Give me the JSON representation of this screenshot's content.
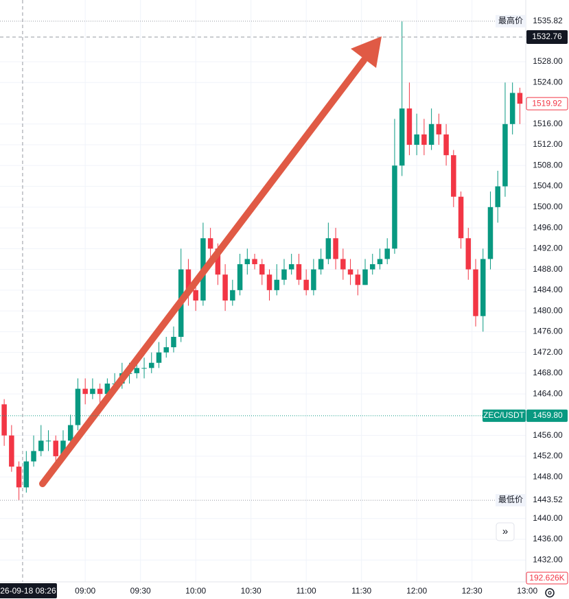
{
  "chart_data": {
    "type": "candlestick",
    "categories": [
      null,
      null,
      null,
      null,
      null,
      null,
      null,
      null,
      null,
      null,
      null,
      null,
      null,
      null,
      null,
      null,
      null,
      null,
      null,
      null,
      null,
      null,
      null,
      null,
      null,
      null,
      null,
      null,
      null,
      null,
      null,
      null,
      null,
      null,
      null,
      null,
      null,
      null,
      null,
      null,
      null,
      null,
      null,
      null,
      null,
      null,
      null,
      null,
      null,
      null,
      null,
      null,
      null,
      null,
      null,
      null,
      null,
      null,
      null,
      null,
      null,
      null,
      null,
      null,
      null,
      null,
      null,
      null,
      null,
      null,
      null
    ],
    "open": [
      1462,
      1456,
      1450,
      1446,
      1451,
      1453,
      1455,
      1455,
      1452,
      1455,
      1458,
      1465,
      1464,
      1465,
      1464,
      1466,
      1466,
      1468,
      1468,
      1469,
      1469,
      1470,
      1472,
      1473,
      1475,
      1488,
      1484,
      1482,
      1494,
      1492,
      1487,
      1482,
      1484,
      1489,
      1490,
      1489,
      1487,
      1484,
      1486,
      1488,
      1489,
      1486,
      1484,
      1488,
      1490,
      1494,
      1490,
      1488,
      1487,
      1485,
      1488,
      1489,
      1490,
      1492,
      1508,
      1519,
      1512,
      1514,
      1512,
      1516,
      1514,
      1510,
      1502,
      1494,
      1488,
      1479,
      1490,
      1500,
      1504,
      1516,
      1522
    ],
    "high": [
      1463,
      1458,
      1451,
      1453,
      1456,
      1458,
      1457,
      1456,
      1457,
      1460,
      1467,
      1467,
      1467,
      1466,
      1467,
      1468,
      1470,
      1470,
      1471,
      1471,
      1472,
      1474,
      1475,
      1477,
      1492,
      1490,
      1486,
      1497,
      1496,
      1493,
      1489,
      1486,
      1491,
      1492,
      1491,
      1490,
      1488,
      1489,
      1490,
      1491,
      1491,
      1488,
      1490,
      1492,
      1497,
      1496,
      1492,
      1490,
      1488,
      1490,
      1491,
      1492,
      1494,
      1517,
      1535.82,
      1524,
      1518,
      1517,
      1519,
      1518,
      1516,
      1511,
      1503,
      1496,
      1490,
      1492,
      1503,
      1507,
      1524,
      1524,
      1523
    ],
    "low": [
      1454,
      1449,
      1443.52,
      1445,
      1450,
      1452,
      1453,
      1450,
      1451,
      1454,
      1457,
      1462,
      1463,
      1462,
      1463,
      1465,
      1465,
      1466,
      1467,
      1467,
      1468,
      1469,
      1471,
      1472,
      1474,
      1481,
      1480,
      1481,
      1490,
      1485,
      1480,
      1481,
      1483,
      1487,
      1488,
      1485,
      1482,
      1483,
      1485,
      1487,
      1485,
      1483,
      1483,
      1487,
      1489,
      1488,
      1486,
      1485,
      1483,
      1485,
      1487,
      1488,
      1489,
      1491,
      1506,
      1510,
      1510,
      1510,
      1511,
      1512,
      1508,
      1500,
      1492,
      1486,
      1477,
      1476,
      1488,
      1497,
      1502,
      1514,
      1516
    ],
    "close": [
      1456,
      1450,
      1446,
      1451,
      1453,
      1455,
      1455,
      1452,
      1455,
      1458,
      1465,
      1464,
      1465,
      1464,
      1466,
      1466,
      1468,
      1468,
      1469,
      1469,
      1470,
      1472,
      1473,
      1475,
      1488,
      1484,
      1482,
      1494,
      1492,
      1487,
      1482,
      1484,
      1489,
      1490,
      1489,
      1487,
      1484,
      1486,
      1488,
      1489,
      1486,
      1484,
      1488,
      1490,
      1494,
      1490,
      1488,
      1487,
      1485,
      1488,
      1489,
      1490,
      1492,
      1508,
      1519,
      1512,
      1514,
      1512,
      1516,
      1514,
      1510,
      1502,
      1494,
      1488,
      1479,
      1490,
      1500,
      1504,
      1516,
      1522,
      1519.92
    ],
    "up_color": "#089981",
    "down_color": "#f23645",
    "xlim": [
      -0.57,
      70.8
    ],
    "xticks": [
      {
        "value": 11,
        "label": "09:00"
      },
      {
        "value": 18.5,
        "label": "09:30"
      },
      {
        "value": 26,
        "label": "10:00"
      },
      {
        "value": 33.5,
        "label": "10:30"
      },
      {
        "value": 41,
        "label": "11:00"
      },
      {
        "value": 48.5,
        "label": "11:30"
      },
      {
        "value": 56,
        "label": "12:00"
      },
      {
        "value": 63.5,
        "label": "12:30"
      },
      {
        "value": 71,
        "label": "13:00"
      }
    ],
    "ylim": [
      1431.5,
      1539.9
    ],
    "yticks": [
      {
        "value": 1432,
        "label": "1432.00"
      },
      {
        "value": 1436,
        "label": "1436.00"
      },
      {
        "value": 1440,
        "label": "1440.00"
      },
      {
        "value": 1448,
        "label": "1448.00"
      },
      {
        "value": 1452,
        "label": "1452.00"
      },
      {
        "value": 1456,
        "label": "1456.00"
      },
      {
        "value": 1464,
        "label": "1464.00"
      },
      {
        "value": 1468,
        "label": "1468.00"
      },
      {
        "value": 1472,
        "label": "1472.00"
      },
      {
        "value": 1476,
        "label": "1476.00"
      },
      {
        "value": 1480,
        "label": "1480.00"
      },
      {
        "value": 1484,
        "label": "1484.00"
      },
      {
        "value": 1488,
        "label": "1488.00"
      },
      {
        "value": 1492,
        "label": "1492.00"
      },
      {
        "value": 1496,
        "label": "1496.00"
      },
      {
        "value": 1500,
        "label": "1500.00"
      },
      {
        "value": 1504,
        "label": "1504.00"
      },
      {
        "value": 1508,
        "label": "1508.00"
      },
      {
        "value": 1512,
        "label": "1512.00"
      },
      {
        "value": 1516,
        "label": "1516.00"
      },
      {
        "value": 1524,
        "label": "1524.00"
      },
      {
        "value": 1528,
        "label": "1528.00"
      }
    ],
    "grid": true,
    "high_marker": {
      "label": "最高价",
      "value": 1535.82
    },
    "low_marker": {
      "label": "最低价",
      "value": 1443.52
    },
    "symbol_marker": {
      "label": "ZEC/USDT",
      "value": {
        "value": 1459.8,
        "label": "1459.80"
      }
    },
    "last_price": 1519.92,
    "crosshair": {
      "price": 1532.76,
      "x": 2.5,
      "time_label": "26-09-18 08:26"
    },
    "volume_label": "192.626K"
  }
}
